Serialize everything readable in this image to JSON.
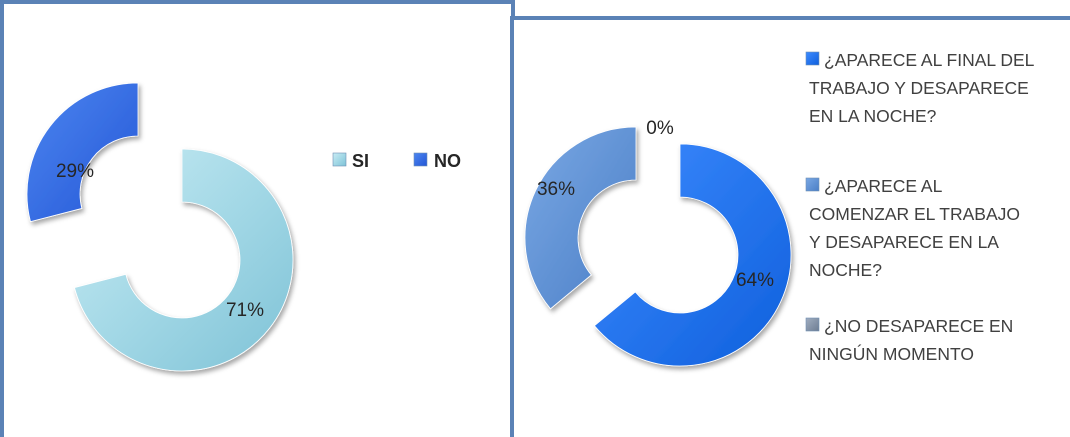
{
  "chart_data": [
    {
      "type": "pie",
      "variant": "doughnut",
      "title": "",
      "categories": [
        "SI",
        "NO"
      ],
      "values": [
        71,
        29
      ],
      "labels": [
        "71%",
        "29%"
      ],
      "colors": [
        "#9cd3e2",
        "#2f6be6"
      ],
      "exploded": true,
      "legend": {
        "position": "top-right",
        "entries": [
          "SI",
          "NO"
        ]
      }
    },
    {
      "type": "pie",
      "variant": "doughnut",
      "title": "",
      "categories": [
        "¿APARECE AL FINAL DEL TRABAJO Y DESAPARECE EN LA NOCHE?",
        "¿APARECE AL COMENZAR EL TRABAJO Y DESAPARECE EN LA NOCHE?",
        "¿NO DESAPARECE EN NINGÚN MOMENTO"
      ],
      "values": [
        64,
        36,
        0
      ],
      "labels": [
        "64%",
        "36%",
        "0%"
      ],
      "colors": [
        "#1a73f0",
        "#5b8fd4",
        "#7f8fa6"
      ],
      "exploded": true,
      "legend": {
        "position": "right",
        "entries": [
          [
            "¿APARECE AL FINAL DEL",
            "TRABAJO Y DESAPARECE",
            "EN LA NOCHE?"
          ],
          [
            "¿APARECE AL",
            "COMENZAR EL TRABAJO",
            "Y DESAPARECE EN LA",
            "NOCHE?"
          ],
          [
            "¿NO DESAPARECE EN",
            "NINGÚN MOMENTO"
          ]
        ]
      }
    }
  ]
}
